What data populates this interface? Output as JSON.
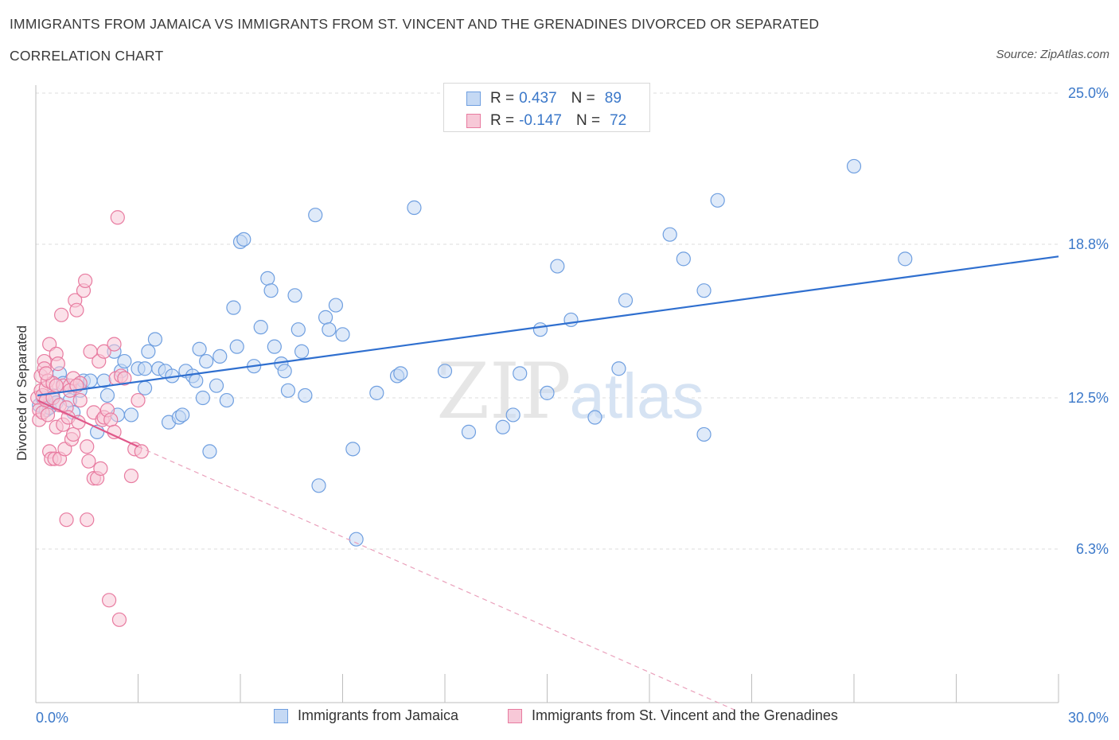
{
  "header": {
    "title": "IMMIGRANTS FROM JAMAICA VS IMMIGRANTS FROM ST. VINCENT AND THE GRENADINES DIVORCED OR SEPARATED",
    "subtitle": "CORRELATION CHART",
    "source": "Source: ZipAtlas.com"
  },
  "watermark": {
    "zip": "ZIP",
    "atlas": "atlas"
  },
  "legend": {
    "rows": [
      {
        "r_label": "R =",
        "r_value": "0.437",
        "n_label": "N =",
        "n_value": "89",
        "color": "#6f9fe0",
        "fill": "#c5d9f4"
      },
      {
        "r_label": "R =",
        "r_value": "-0.147",
        "n_label": "N =",
        "n_value": "72",
        "color": "#e87ba0",
        "fill": "#f7c8d7"
      }
    ]
  },
  "chart_data": {
    "type": "scatter",
    "title": "IMMIGRANTS FROM JAMAICA VS IMMIGRANTS FROM ST. VINCENT AND THE GRENADINES DIVORCED OR SEPARATED",
    "xlabel": "",
    "ylabel": "Divorced or Separated",
    "xlim": [
      0,
      30
    ],
    "ylim": [
      0,
      25
    ],
    "x_tick_labels": [
      "0.0%",
      "30.0%"
    ],
    "y_ticks": [
      6.3,
      12.5,
      18.8,
      25.0
    ],
    "y_tick_labels": [
      "6.3%",
      "12.5%",
      "18.8%",
      "25.0%"
    ],
    "grid": "horizontal-dashed",
    "series": [
      {
        "name": "Immigrants from Jamaica",
        "color": "#6f9fe0",
        "fill": "#c5d9f4",
        "trend": {
          "x": [
            0.05,
            30.0
          ],
          "y": [
            12.6,
            18.3
          ],
          "style": "solid"
        },
        "points": [
          [
            0.1,
            12.2
          ],
          [
            0.2,
            12.5
          ],
          [
            0.3,
            12.0
          ],
          [
            0.4,
            12.1
          ],
          [
            0.5,
            12.6
          ],
          [
            0.6,
            12.3
          ],
          [
            0.7,
            13.5
          ],
          [
            0.8,
            13.1
          ],
          [
            1.0,
            12.4
          ],
          [
            1.1,
            11.9
          ],
          [
            1.3,
            12.8
          ],
          [
            1.4,
            13.2
          ],
          [
            1.6,
            13.2
          ],
          [
            1.8,
            11.1
          ],
          [
            2.0,
            13.2
          ],
          [
            2.1,
            12.6
          ],
          [
            2.3,
            14.4
          ],
          [
            2.4,
            11.8
          ],
          [
            2.5,
            13.6
          ],
          [
            2.6,
            14.0
          ],
          [
            2.8,
            11.8
          ],
          [
            3.0,
            13.7
          ],
          [
            3.2,
            13.7
          ],
          [
            3.2,
            12.9
          ],
          [
            3.3,
            14.4
          ],
          [
            3.5,
            14.9
          ],
          [
            3.6,
            13.7
          ],
          [
            3.8,
            13.6
          ],
          [
            3.9,
            11.5
          ],
          [
            4.0,
            13.4
          ],
          [
            4.2,
            11.7
          ],
          [
            4.3,
            11.8
          ],
          [
            4.4,
            13.6
          ],
          [
            4.6,
            13.4
          ],
          [
            4.7,
            13.2
          ],
          [
            4.8,
            14.5
          ],
          [
            4.9,
            12.5
          ],
          [
            5.0,
            14.0
          ],
          [
            5.1,
            10.3
          ],
          [
            5.3,
            13.0
          ],
          [
            5.4,
            14.2
          ],
          [
            5.6,
            12.4
          ],
          [
            5.8,
            16.2
          ],
          [
            5.9,
            14.6
          ],
          [
            6.0,
            18.9
          ],
          [
            6.1,
            19.0
          ],
          [
            6.4,
            13.8
          ],
          [
            6.6,
            15.4
          ],
          [
            6.8,
            17.4
          ],
          [
            6.9,
            16.9
          ],
          [
            7.0,
            14.6
          ],
          [
            7.2,
            13.9
          ],
          [
            7.3,
            13.6
          ],
          [
            7.4,
            12.8
          ],
          [
            7.6,
            16.7
          ],
          [
            7.7,
            15.3
          ],
          [
            7.8,
            14.4
          ],
          [
            7.9,
            12.6
          ],
          [
            8.2,
            20.0
          ],
          [
            8.3,
            8.9
          ],
          [
            8.5,
            15.8
          ],
          [
            8.6,
            15.3
          ],
          [
            8.8,
            16.3
          ],
          [
            9.0,
            15.1
          ],
          [
            9.3,
            10.4
          ],
          [
            10.0,
            12.7
          ],
          [
            10.6,
            13.4
          ],
          [
            10.7,
            13.5
          ],
          [
            11.1,
            20.3
          ],
          [
            12.0,
            13.6
          ],
          [
            12.7,
            11.1
          ],
          [
            13.7,
            11.3
          ],
          [
            14.0,
            11.8
          ],
          [
            14.2,
            13.5
          ],
          [
            14.8,
            15.3
          ],
          [
            15.0,
            12.7
          ],
          [
            15.3,
            17.9
          ],
          [
            15.7,
            15.7
          ],
          [
            16.4,
            11.7
          ],
          [
            17.1,
            13.7
          ],
          [
            17.3,
            16.5
          ],
          [
            18.6,
            19.2
          ],
          [
            19.0,
            18.2
          ],
          [
            19.6,
            11.0
          ],
          [
            19.6,
            16.9
          ],
          [
            20.0,
            20.6
          ],
          [
            24.0,
            22.0
          ],
          [
            25.5,
            18.2
          ],
          [
            9.4,
            6.7
          ]
        ]
      },
      {
        "name": "Immigrants from St. Vincent and the Grenadines",
        "color": "#e87ba0",
        "fill": "#f7c8d7",
        "trend": {
          "x": [
            0.05,
            3.0
          ],
          "y": [
            12.4,
            10.5
          ],
          "style": "solid",
          "dashed_extension": {
            "x": [
              3.0,
              20.5
            ],
            "y": [
              10.5,
              -0.3
            ]
          }
        },
        "points": [
          [
            0.05,
            12.5
          ],
          [
            0.1,
            12.0
          ],
          [
            0.1,
            11.6
          ],
          [
            0.15,
            13.4
          ],
          [
            0.15,
            12.8
          ],
          [
            0.2,
            12.6
          ],
          [
            0.2,
            11.9
          ],
          [
            0.25,
            14.0
          ],
          [
            0.25,
            13.7
          ],
          [
            0.3,
            12.4
          ],
          [
            0.3,
            12.9
          ],
          [
            0.35,
            13.2
          ],
          [
            0.35,
            11.8
          ],
          [
            0.4,
            10.3
          ],
          [
            0.4,
            14.7
          ],
          [
            0.45,
            10.0
          ],
          [
            0.5,
            12.5
          ],
          [
            0.5,
            13.1
          ],
          [
            0.55,
            10.0
          ],
          [
            0.6,
            14.3
          ],
          [
            0.6,
            11.3
          ],
          [
            0.65,
            13.9
          ],
          [
            0.7,
            12.2
          ],
          [
            0.7,
            10.0
          ],
          [
            0.75,
            15.9
          ],
          [
            0.8,
            13.0
          ],
          [
            0.8,
            11.4
          ],
          [
            0.85,
            10.4
          ],
          [
            0.9,
            12.1
          ],
          [
            0.9,
            7.5
          ],
          [
            0.95,
            11.7
          ],
          [
            1.0,
            13.0
          ],
          [
            1.0,
            12.8
          ],
          [
            1.05,
            10.8
          ],
          [
            1.1,
            13.3
          ],
          [
            1.1,
            11.0
          ],
          [
            1.15,
            16.5
          ],
          [
            1.2,
            16.1
          ],
          [
            1.25,
            11.5
          ],
          [
            1.3,
            13.1
          ],
          [
            1.3,
            12.4
          ],
          [
            1.4,
            16.9
          ],
          [
            1.45,
            17.3
          ],
          [
            1.5,
            10.5
          ],
          [
            1.5,
            7.5
          ],
          [
            1.55,
            9.9
          ],
          [
            1.6,
            14.4
          ],
          [
            1.7,
            9.2
          ],
          [
            1.7,
            11.9
          ],
          [
            1.8,
            9.2
          ],
          [
            1.85,
            14.0
          ],
          [
            1.9,
            9.6
          ],
          [
            1.95,
            11.6
          ],
          [
            2.0,
            14.4
          ],
          [
            2.0,
            11.7
          ],
          [
            2.1,
            12.0
          ],
          [
            2.15,
            4.2
          ],
          [
            2.2,
            11.6
          ],
          [
            2.3,
            11.1
          ],
          [
            2.3,
            14.7
          ],
          [
            2.35,
            13.3
          ],
          [
            2.4,
            19.9
          ],
          [
            2.45,
            3.4
          ],
          [
            2.5,
            13.4
          ],
          [
            2.6,
            13.3
          ],
          [
            2.8,
            9.3
          ],
          [
            2.9,
            10.4
          ],
          [
            3.0,
            12.4
          ],
          [
            3.1,
            10.3
          ],
          [
            0.3,
            13.5
          ],
          [
            0.6,
            13.0
          ],
          [
            1.2,
            13.0
          ]
        ]
      }
    ]
  }
}
